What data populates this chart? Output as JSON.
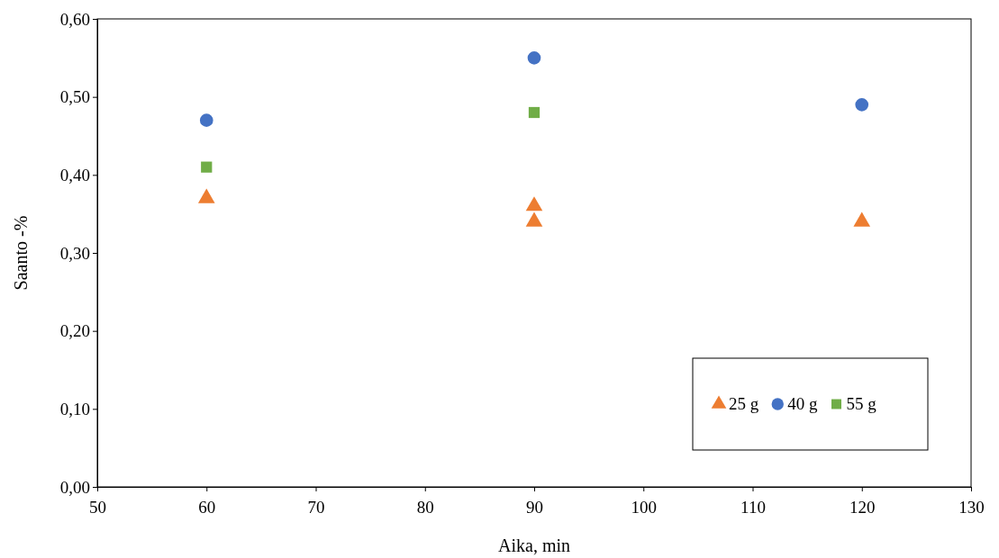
{
  "chart_data": {
    "type": "scatter",
    "xlabel": "Aika, min",
    "ylabel": "Saanto -%",
    "xlim": [
      50,
      130
    ],
    "xticks": [
      50,
      60,
      70,
      80,
      90,
      100,
      110,
      120,
      130
    ],
    "ylim": [
      0,
      0.6
    ],
    "yticks": [
      {
        "value": 0,
        "label": "0,00"
      },
      {
        "value": 0.1,
        "label": "0,10"
      },
      {
        "value": 0.2,
        "label": "0,20"
      },
      {
        "value": 0.3,
        "label": "0,30"
      },
      {
        "value": 0.4,
        "label": "0,40"
      },
      {
        "value": 0.5,
        "label": "0,50"
      },
      {
        "value": 0.6,
        "label": "0,60"
      }
    ],
    "grid": false,
    "legend": "bottom right",
    "series": [
      {
        "name": "25 g",
        "color": "#ed7d31",
        "marker": "triangle",
        "x": [
          60,
          90,
          90,
          120
        ],
        "values": [
          0.37,
          0.36,
          0.34,
          0.34
        ]
      },
      {
        "name": "40 g",
        "color": "#4472c4",
        "marker": "circle",
        "x": [
          60,
          90,
          120
        ],
        "values": [
          0.47,
          0.55,
          0.49
        ]
      },
      {
        "name": "55 g",
        "color": "#70ad47",
        "marker": "square",
        "x": [
          60,
          90
        ],
        "values": [
          0.41,
          0.48
        ]
      }
    ]
  }
}
